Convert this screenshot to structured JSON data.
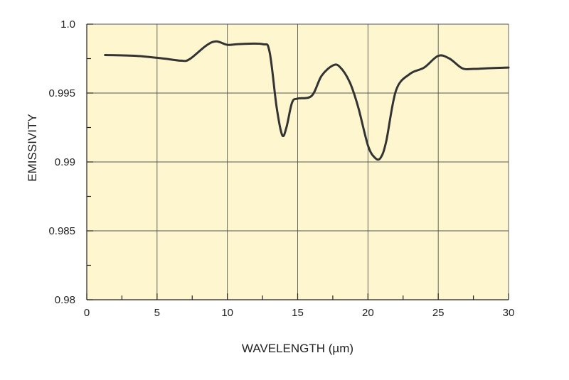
{
  "chart_data": {
    "type": "line",
    "xlabel": "WAVELENGTH (µm)",
    "ylabel": "EMISSIVITY",
    "xlim": [
      0,
      30
    ],
    "ylim": [
      0.98,
      1.0
    ],
    "x_ticks": [
      0,
      5,
      10,
      15,
      20,
      25,
      30
    ],
    "x_tick_labels": [
      "0",
      "5",
      "10",
      "15",
      "20",
      "25",
      "30"
    ],
    "y_ticks": [
      0.98,
      0.985,
      0.99,
      0.995,
      1.0
    ],
    "y_tick_labels": [
      "0.98",
      "0.985",
      "0.99",
      "0.995",
      "1.0"
    ],
    "grid": true,
    "plot_background": "#fdf6cf",
    "line_color": "#333333",
    "series": [
      {
        "x": [
          1.3,
          3.5,
          5.5,
          6.7,
          7.3,
          8.5,
          9.2,
          10.0,
          10.8,
          12.5,
          13.0,
          13.5,
          13.9,
          14.2,
          14.6,
          15.0,
          16.0,
          16.7,
          17.5,
          18.0,
          18.7,
          19.3,
          20.0,
          20.5,
          20.9,
          21.3,
          22.0,
          23.0,
          24.0,
          25.0,
          25.8,
          26.7,
          27.5,
          28.5,
          30.0
        ],
        "y": [
          0.99776,
          0.9977,
          0.9975,
          0.99735,
          0.99745,
          0.99845,
          0.99875,
          0.9985,
          0.99855,
          0.99855,
          0.998,
          0.994,
          0.99195,
          0.9925,
          0.9943,
          0.9946,
          0.9948,
          0.99625,
          0.997,
          0.9969,
          0.9958,
          0.994,
          0.9912,
          0.9903,
          0.9903,
          0.9915,
          0.9952,
          0.9964,
          0.99685,
          0.9977,
          0.9975,
          0.9968,
          0.99675,
          0.9968,
          0.99685
        ]
      }
    ]
  }
}
